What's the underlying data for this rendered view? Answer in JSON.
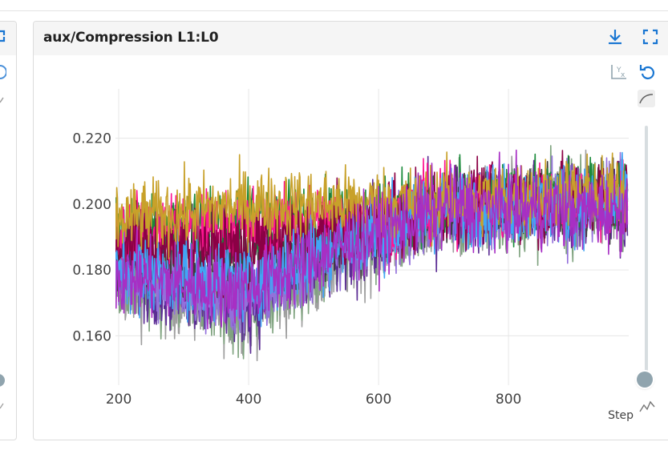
{
  "card": {
    "title": "aux/Compression L1:L0",
    "actions": [
      {
        "name": "download-icon"
      },
      {
        "name": "fullscreen-icon"
      }
    ],
    "toolbar": [
      {
        "name": "fit-domain-icon"
      },
      {
        "name": "reset-zoom-icon"
      },
      {
        "name": "smoothing-curve-icon"
      },
      {
        "name": "step-chart-icon"
      }
    ],
    "smoothing_slider": {
      "value": 0
    }
  },
  "chart_data": {
    "type": "line",
    "xlabel": "Step",
    "ylabel": "",
    "xlim": [
      195,
      985
    ],
    "ylim": [
      0.145,
      0.235
    ],
    "xticks": [
      200,
      400,
      600,
      800
    ],
    "xtick_labels": [
      "200",
      "400",
      "600",
      "800"
    ],
    "yticks": [
      0.16,
      0.18,
      0.2,
      0.22
    ],
    "ytick_labels": [
      "0.160",
      "0.180",
      "0.200",
      "0.220"
    ],
    "grid": true,
    "step_start": 195,
    "step_end": 983,
    "series": [
      {
        "color": "#9e9e9e",
        "base": [
          [
            195,
            0.176
          ],
          [
            400,
            0.168
          ],
          [
            540,
            0.183
          ],
          [
            700,
            0.197
          ],
          [
            983,
            0.201
          ]
        ],
        "noise": 0.012
      },
      {
        "color": "#7fa37f",
        "base": [
          [
            195,
            0.177
          ],
          [
            400,
            0.169
          ],
          [
            540,
            0.184
          ],
          [
            700,
            0.197
          ],
          [
            983,
            0.2
          ]
        ],
        "noise": 0.012
      },
      {
        "color": "#5b2c94",
        "base": [
          [
            195,
            0.18
          ],
          [
            400,
            0.17
          ],
          [
            540,
            0.185
          ],
          [
            700,
            0.198
          ],
          [
            983,
            0.2
          ]
        ],
        "noise": 0.012
      },
      {
        "color": "#9370db",
        "base": [
          [
            195,
            0.179
          ],
          [
            400,
            0.171
          ],
          [
            540,
            0.185
          ],
          [
            700,
            0.198
          ],
          [
            983,
            0.201
          ]
        ],
        "noise": 0.011
      },
      {
        "color": "#3d3d3d",
        "base": [
          [
            195,
            0.185
          ],
          [
            400,
            0.183
          ],
          [
            540,
            0.19
          ],
          [
            700,
            0.199
          ],
          [
            983,
            0.202
          ]
        ],
        "noise": 0.01
      },
      {
        "color": "#1a8a3a",
        "base": [
          [
            195,
            0.193
          ],
          [
            400,
            0.196
          ],
          [
            540,
            0.196
          ],
          [
            700,
            0.2
          ],
          [
            983,
            0.203
          ]
        ],
        "noise": 0.01
      },
      {
        "color": "#ff1493",
        "base": [
          [
            195,
            0.191
          ],
          [
            400,
            0.194
          ],
          [
            540,
            0.195
          ],
          [
            700,
            0.2
          ],
          [
            983,
            0.202
          ]
        ],
        "noise": 0.01
      },
      {
        "color": "#8b0045",
        "base": [
          [
            195,
            0.188
          ],
          [
            400,
            0.187
          ],
          [
            540,
            0.192
          ],
          [
            700,
            0.2
          ],
          [
            983,
            0.202
          ]
        ],
        "noise": 0.011
      },
      {
        "color": "#42a5f5",
        "base": [
          [
            195,
            0.18
          ],
          [
            400,
            0.176
          ],
          [
            540,
            0.188
          ],
          [
            700,
            0.199
          ],
          [
            983,
            0.201
          ]
        ],
        "noise": 0.011
      },
      {
        "color": "#c8a12a",
        "base": [
          [
            195,
            0.195
          ],
          [
            400,
            0.2
          ],
          [
            540,
            0.2
          ],
          [
            700,
            0.201
          ],
          [
            983,
            0.204
          ]
        ],
        "noise": 0.01
      },
      {
        "color": "#a72fc4",
        "base": [
          [
            195,
            0.178
          ],
          [
            400,
            0.174
          ],
          [
            540,
            0.187
          ],
          [
            700,
            0.199
          ],
          [
            983,
            0.198
          ]
        ],
        "noise": 0.011
      }
    ]
  }
}
